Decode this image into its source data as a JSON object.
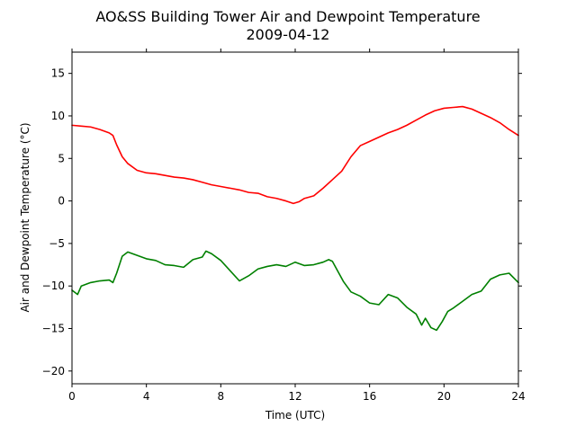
{
  "chart_data": {
    "type": "line",
    "title": "AO&SS Building Tower Air and Dewpoint Temperature",
    "subtitle": "2009-04-12",
    "xlabel": "Time (UTC)",
    "ylabel": "Air and Dewpoint Temperature (°C)",
    "xlim": [
      0,
      24
    ],
    "ylim": [
      -21.5,
      17.5
    ],
    "xticks": [
      0,
      4,
      8,
      12,
      16,
      20,
      24
    ],
    "yticks": [
      -20,
      -15,
      -10,
      -5,
      0,
      5,
      10,
      15
    ],
    "xtick_labels": [
      "0",
      "4",
      "8",
      "12",
      "16",
      "20",
      "24"
    ],
    "ytick_labels": [
      "−20",
      "−15",
      "−10",
      "−5",
      "0",
      "5",
      "10",
      "15"
    ],
    "grid": false,
    "legend": "none",
    "series": [
      {
        "color": "#ff0000",
        "x": [
          0,
          0.5,
          1.0,
          1.5,
          2.0,
          2.2,
          2.4,
          2.7,
          3.0,
          3.5,
          4.0,
          4.5,
          5.0,
          5.5,
          6.0,
          6.5,
          7.0,
          7.5,
          8.0,
          8.5,
          9.0,
          9.5,
          10.0,
          10.5,
          11.0,
          11.5,
          11.9,
          12.2,
          12.5,
          13.0,
          13.5,
          14.0,
          14.5,
          15.0,
          15.5,
          16.0,
          16.5,
          17.0,
          17.5,
          18.0,
          18.5,
          19.0,
          19.5,
          20.0,
          20.5,
          21.0,
          21.5,
          22.0,
          22.5,
          23.0,
          23.5,
          24.0
        ],
        "values": [
          8.9,
          8.8,
          8.7,
          8.4,
          8.0,
          7.7,
          6.6,
          5.2,
          4.4,
          3.6,
          3.3,
          3.2,
          3.0,
          2.8,
          2.7,
          2.5,
          2.2,
          1.9,
          1.7,
          1.5,
          1.3,
          1.0,
          0.9,
          0.5,
          0.3,
          0.0,
          -0.3,
          -0.1,
          0.3,
          0.6,
          1.5,
          2.5,
          3.5,
          5.2,
          6.5,
          7.0,
          7.5,
          8.0,
          8.4,
          8.9,
          9.5,
          10.1,
          10.6,
          10.9,
          11.0,
          11.1,
          10.8,
          10.3,
          9.8,
          9.2,
          8.4,
          7.7
        ]
      },
      {
        "color": "#008000",
        "x": [
          0,
          0.3,
          0.5,
          1.0,
          1.5,
          2.0,
          2.2,
          2.4,
          2.7,
          3.0,
          3.5,
          4.0,
          4.5,
          5.0,
          5.5,
          6.0,
          6.5,
          7.0,
          7.2,
          7.5,
          8.0,
          8.5,
          9.0,
          9.5,
          10.0,
          10.5,
          11.0,
          11.5,
          12.0,
          12.5,
          13.0,
          13.5,
          13.8,
          14.0,
          14.3,
          14.6,
          15.0,
          15.5,
          16.0,
          16.5,
          17.0,
          17.5,
          18.0,
          18.5,
          18.8,
          19.0,
          19.3,
          19.6,
          19.9,
          20.2,
          20.5,
          21.0,
          21.5,
          22.0,
          22.5,
          23.0,
          23.5,
          24.0
        ],
        "values": [
          -10.5,
          -11.0,
          -10.0,
          -9.6,
          -9.4,
          -9.3,
          -9.6,
          -8.5,
          -6.5,
          -6.0,
          -6.4,
          -6.8,
          -7.0,
          -7.5,
          -7.6,
          -7.8,
          -6.9,
          -6.6,
          -5.9,
          -6.2,
          -7.0,
          -8.2,
          -9.4,
          -8.8,
          -8.0,
          -7.7,
          -7.5,
          -7.7,
          -7.2,
          -7.6,
          -7.5,
          -7.2,
          -6.9,
          -7.1,
          -8.3,
          -9.5,
          -10.7,
          -11.2,
          -12.0,
          -12.2,
          -11.0,
          -11.4,
          -12.5,
          -13.3,
          -14.6,
          -13.8,
          -14.9,
          -15.2,
          -14.2,
          -13.0,
          -12.6,
          -11.8,
          -11.0,
          -10.6,
          -9.2,
          -8.7,
          -8.5,
          -9.6
        ]
      }
    ]
  }
}
